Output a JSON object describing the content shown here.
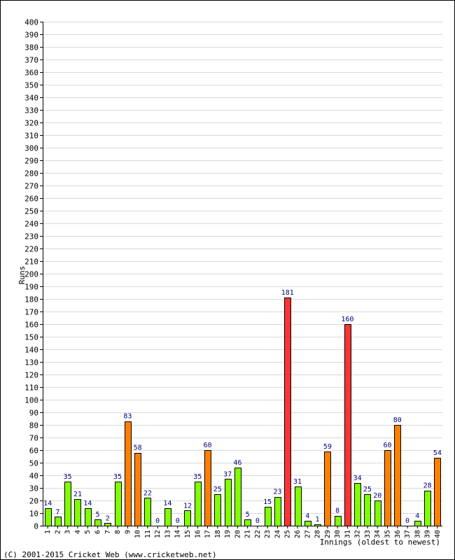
{
  "chart_data": {
    "type": "bar",
    "ylabel": "Runs",
    "xlabel": "Innings (oldest to newest)",
    "ylim": [
      0,
      400
    ],
    "ytick_step": 10,
    "grid": true,
    "categories": [
      "1",
      "2",
      "3",
      "4",
      "5",
      "6",
      "7",
      "8",
      "9",
      "10",
      "11",
      "12",
      "13",
      "14",
      "15",
      "16",
      "17",
      "18",
      "19",
      "20",
      "21",
      "22",
      "23",
      "24",
      "25",
      "26",
      "27",
      "28",
      "29",
      "30",
      "31",
      "32",
      "33",
      "34",
      "35",
      "36",
      "37",
      "38",
      "39",
      "40"
    ],
    "values": [
      14,
      7,
      35,
      21,
      14,
      5,
      2,
      35,
      83,
      58,
      22,
      0,
      14,
      0,
      12,
      35,
      60,
      25,
      37,
      46,
      5,
      0,
      15,
      23,
      181,
      31,
      4,
      1,
      59,
      8,
      160,
      34,
      25,
      20,
      60,
      80,
      0,
      4,
      28,
      54
    ],
    "colors": {
      "under_50": "#80ff00",
      "fifty": "#ff8000",
      "hundred": "#ff3333",
      "label": "#000080",
      "grid": "#d8d8d8"
    }
  },
  "footer": "(C) 2001-2015 Cricket Web (www.cricketweb.net)"
}
